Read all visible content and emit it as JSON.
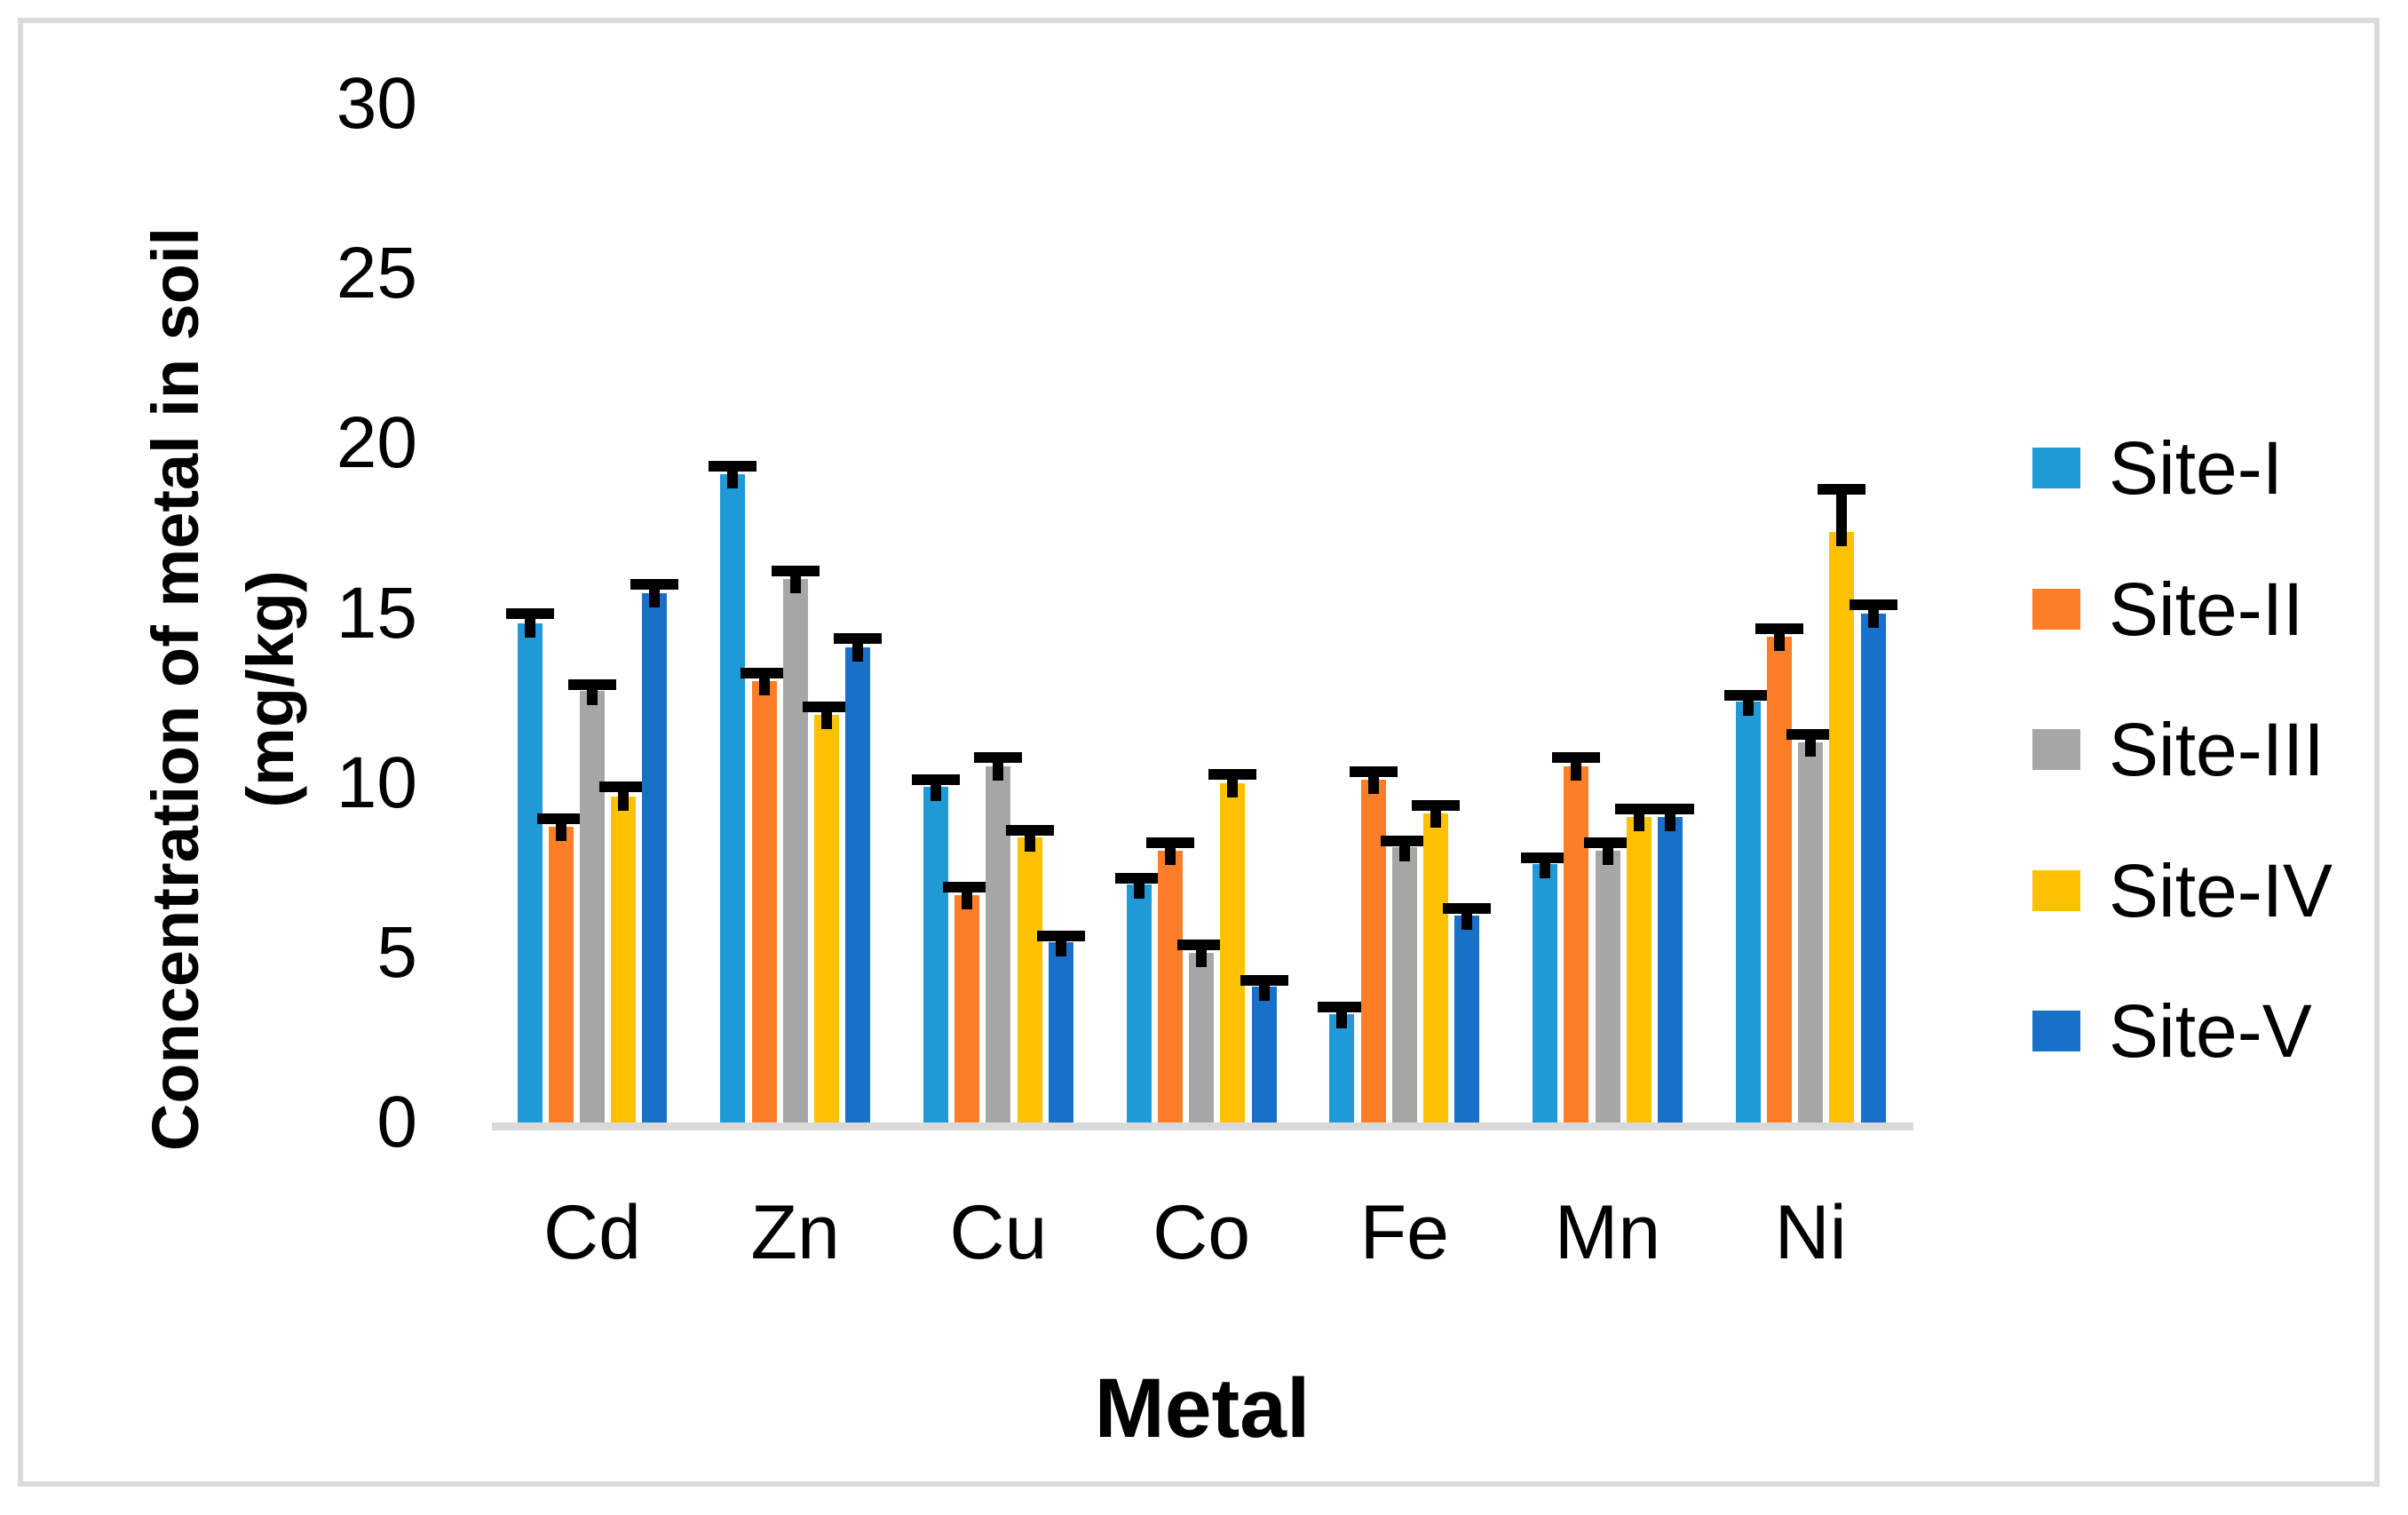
{
  "figure": {
    "y_axis_title": "Concentration of metal in  soil\n(mg/kg)",
    "x_axis_title": "Metal"
  },
  "chart_data": {
    "type": "bar",
    "title": "",
    "xlabel": "Metal",
    "ylabel": "Concentration of metal in  soil (mg/kg)",
    "categories": [
      "Cd",
      "Zn",
      "Cu",
      "Co",
      "Fe",
      "Mn",
      "Ni"
    ],
    "series": [
      {
        "name": "Site-I",
        "color": "#2099D7",
        "values": [
          14.7,
          19.1,
          9.9,
          7.0,
          3.2,
          7.6,
          12.4
        ],
        "errors": [
          0.45,
          0.4,
          0.35,
          0.35,
          0.35,
          0.35,
          0.35
        ]
      },
      {
        "name": "Site-II",
        "color": "#FD7E27",
        "values": [
          8.7,
          13.0,
          6.7,
          8.0,
          10.1,
          10.5,
          14.3
        ],
        "errors": [
          0.4,
          0.4,
          0.4,
          0.4,
          0.4,
          0.4,
          0.4
        ]
      },
      {
        "name": "Site-III",
        "color": "#A6A6A6",
        "values": [
          12.7,
          16.0,
          10.5,
          5.0,
          8.1,
          8.0,
          11.2
        ],
        "errors": [
          0.35,
          0.4,
          0.4,
          0.4,
          0.35,
          0.4,
          0.4
        ]
      },
      {
        "name": "Site-IV",
        "color": "#FEC100",
        "values": [
          9.6,
          12.0,
          8.4,
          10.0,
          9.1,
          9.0,
          17.4
        ],
        "errors": [
          0.45,
          0.4,
          0.35,
          0.4,
          0.4,
          0.4,
          1.4
        ]
      },
      {
        "name": "Site-V",
        "color": "#1970C8",
        "values": [
          15.6,
          14.0,
          5.3,
          4.0,
          6.1,
          9.0,
          15.0
        ],
        "errors": [
          0.4,
          0.4,
          0.35,
          0.35,
          0.35,
          0.4,
          0.4
        ]
      }
    ],
    "yaxis": {
      "min": 0,
      "max": 30,
      "step": 5
    },
    "grid": false,
    "legend_position": "right",
    "error_bars": true,
    "baseline_color": "#D9D9D9",
    "error_bar_color": "#000000"
  }
}
